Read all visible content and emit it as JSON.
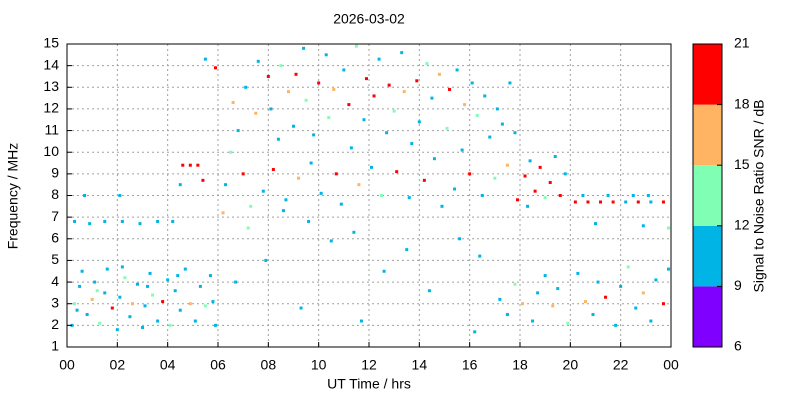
{
  "chart_data": {
    "type": "scatter",
    "title": "2026-03-02",
    "x_label": "UT Time / hrs",
    "y_label": "Frequency / MHz",
    "colorbar_label": "Signal to Noise Ratio SNR / dB",
    "xlim": [
      0,
      24
    ],
    "xticks": [
      {
        "value": 0,
        "label": "00"
      },
      {
        "value": 2,
        "label": "02"
      },
      {
        "value": 4,
        "label": "04"
      },
      {
        "value": 6,
        "label": "06"
      },
      {
        "value": 8,
        "label": "08"
      },
      10,
      12,
      14,
      16,
      18,
      20,
      22,
      {
        "value": 24,
        "label": "00"
      }
    ],
    "ylim": [
      1,
      15
    ],
    "yticks": [
      1,
      2,
      3,
      4,
      5,
      6,
      7,
      8,
      9,
      10,
      11,
      12,
      13,
      14,
      15
    ],
    "grid": true,
    "colorbar": {
      "lim": [
        6,
        21
      ],
      "ticks": [
        6,
        9,
        12,
        15,
        18,
        21
      ],
      "colors": [
        "#7f00ff",
        "#00b4e6",
        "#80ffb4",
        "#ffb464",
        "#ff0000"
      ]
    },
    "x": [
      0.2,
      0.3,
      0.5,
      0.6,
      0.8,
      1.0,
      1.1,
      1.3,
      1.5,
      1.6,
      1.8,
      2.0,
      2.1,
      2.3,
      2.5,
      2.6,
      2.8,
      3.0,
      3.1,
      3.3,
      3.4,
      3.6,
      3.8,
      4.0,
      4.1,
      4.3,
      4.5,
      4.7,
      4.9,
      5.1,
      5.3,
      5.5,
      5.7,
      5.8,
      5.9,
      0.4,
      1.2,
      2.2,
      3.2,
      4.4,
      0.3,
      0.9,
      1.5,
      2.2,
      2.9,
      3.6,
      4.2,
      0.7,
      2.1,
      4.6,
      4.9,
      5.2,
      4.5,
      5.4,
      5.9,
      5.5,
      6.2,
      6.3,
      6.5,
      6.6,
      6.8,
      7.0,
      7.1,
      7.3,
      7.5,
      7.6,
      7.8,
      8.0,
      8.1,
      8.2,
      8.4,
      8.5,
      8.7,
      8.8,
      9.0,
      9.1,
      9.2,
      9.4,
      9.5,
      9.7,
      9.8,
      10.0,
      10.1,
      10.3,
      10.4,
      10.6,
      10.7,
      10.9,
      11.0,
      11.2,
      11.3,
      11.5,
      11.6,
      11.8,
      11.9,
      12.1,
      12.2,
      12.4,
      12.5,
      12.7,
      12.8,
      13.0,
      13.1,
      13.3,
      13.4,
      13.6,
      13.7,
      13.9,
      14.0,
      14.2,
      14.3,
      14.5,
      14.6,
      14.8,
      14.9,
      15.1,
      15.2,
      15.4,
      15.5,
      15.7,
      15.8,
      16.0,
      16.1,
      16.3,
      16.5,
      16.6,
      16.8,
      17.0,
      17.1,
      17.3,
      17.5,
      17.6,
      17.8,
      17.9,
      7.2,
      8.6,
      9.6,
      10.5,
      11.4,
      12.6,
      13.5,
      14.4,
      15.6,
      16.4,
      7.9,
      6.7,
      9.3,
      11.7,
      16.2,
      18.2,
      18.4,
      18.6,
      18.8,
      19.0,
      19.2,
      19.4,
      19.6,
      18.3,
      19.8,
      20.2,
      20.7,
      21.2,
      21.7,
      22.2,
      22.7,
      23.2,
      23.7,
      20.5,
      21.5,
      22.5,
      23.1,
      21.0,
      22.9,
      23.9,
      17.2,
      17.5,
      17.8,
      18.1,
      18.5,
      18.7,
      19.0,
      19.3,
      19.5,
      19.9,
      20.3,
      20.6,
      20.9,
      21.1,
      21.4,
      21.8,
      22.0,
      22.3,
      22.6,
      22.9,
      23.2,
      23.4,
      23.7,
      23.9
    ],
    "y": [
      2.0,
      3.0,
      3.8,
      4.5,
      2.5,
      3.2,
      4.0,
      2.1,
      3.5,
      4.6,
      2.8,
      1.8,
      3.3,
      4.2,
      2.4,
      3.0,
      3.9,
      1.9,
      2.9,
      4.4,
      3.4,
      2.2,
      3.1,
      4.1,
      2.0,
      3.6,
      2.7,
      4.6,
      3.0,
      2.2,
      3.8,
      2.9,
      4.3,
      3.1,
      2.0,
      2.7,
      3.6,
      4.7,
      3.8,
      4.3,
      6.8,
      6.7,
      6.8,
      6.8,
      6.7,
      6.8,
      6.8,
      8.0,
      8.0,
      9.4,
      9.4,
      9.4,
      8.5,
      8.7,
      13.9,
      14.3,
      7.2,
      8.5,
      10.0,
      12.3,
      11.0,
      9.0,
      13.0,
      7.5,
      11.8,
      14.2,
      8.2,
      13.5,
      12.0,
      9.2,
      10.6,
      14.0,
      7.8,
      12.8,
      11.2,
      13.6,
      8.8,
      14.8,
      12.4,
      9.5,
      10.8,
      13.2,
      8.1,
      14.5,
      11.6,
      12.9,
      9.0,
      7.6,
      13.8,
      12.2,
      10.2,
      14.9,
      8.5,
      11.5,
      13.4,
      9.3,
      12.6,
      14.3,
      8.0,
      10.9,
      13.1,
      11.9,
      9.1,
      14.6,
      12.8,
      7.9,
      10.4,
      13.3,
      11.4,
      8.7,
      14.1,
      12.5,
      9.7,
      13.6,
      7.5,
      11.1,
      12.9,
      8.3,
      13.8,
      10.1,
      12.2,
      9.0,
      13.2,
      11.7,
      8.0,
      12.6,
      10.7,
      8.8,
      12.0,
      11.3,
      9.4,
      13.2,
      10.9,
      7.8,
      6.5,
      7.3,
      6.8,
      5.9,
      6.3,
      4.5,
      5.5,
      3.6,
      6.0,
      5.2,
      5.0,
      4.0,
      2.8,
      2.2,
      1.7,
      8.9,
      9.6,
      8.2,
      9.3,
      7.9,
      8.6,
      9.8,
      8.0,
      7.5,
      9.0,
      7.7,
      7.7,
      7.7,
      7.7,
      7.7,
      7.7,
      7.7,
      7.7,
      8.0,
      8.0,
      8.0,
      8.0,
      6.7,
      6.6,
      6.5,
      3.2,
      2.5,
      3.9,
      3.0,
      2.2,
      3.5,
      4.3,
      2.9,
      3.7,
      2.1,
      4.4,
      3.1,
      2.5,
      4.0,
      3.3,
      2.0,
      3.8,
      4.7,
      2.8,
      3.5,
      2.2,
      4.1,
      3.0,
      4.6
    ],
    "snr": [
      10,
      13,
      10,
      10,
      11,
      16,
      10,
      13,
      10,
      11,
      19,
      10,
      10,
      13,
      10,
      16,
      10,
      11,
      10,
      10,
      13,
      10,
      19,
      10,
      13,
      10,
      10,
      10,
      16,
      10,
      10,
      13,
      10,
      10,
      10,
      10,
      13,
      10,
      10,
      11,
      10,
      10,
      11,
      10,
      10,
      10,
      10,
      10,
      10,
      19,
      19,
      19,
      10,
      19,
      19,
      10,
      16,
      10,
      13,
      16,
      10,
      19,
      10,
      13,
      16,
      10,
      10,
      19,
      10,
      19,
      10,
      13,
      10,
      16,
      10,
      19,
      16,
      10,
      13,
      10,
      10,
      19,
      10,
      10,
      13,
      16,
      19,
      10,
      10,
      19,
      10,
      13,
      16,
      10,
      19,
      10,
      19,
      10,
      13,
      10,
      19,
      13,
      19,
      10,
      16,
      10,
      10,
      19,
      10,
      19,
      13,
      10,
      10,
      16,
      10,
      13,
      19,
      10,
      10,
      10,
      16,
      19,
      10,
      13,
      10,
      10,
      10,
      13,
      10,
      10,
      16,
      10,
      10,
      19,
      13,
      10,
      10,
      10,
      10,
      10,
      10,
      10,
      10,
      10,
      10,
      10,
      10,
      10,
      10,
      19,
      10,
      19,
      19,
      13,
      19,
      10,
      19,
      10,
      10,
      19,
      19,
      19,
      19,
      10,
      19,
      10,
      19,
      10,
      10,
      10,
      10,
      10,
      10,
      13,
      10,
      10,
      13,
      16,
      10,
      10,
      10,
      16,
      10,
      13,
      10,
      16,
      10,
      10,
      19,
      10,
      10,
      13,
      10,
      16,
      10,
      10,
      19,
      10
    ]
  }
}
